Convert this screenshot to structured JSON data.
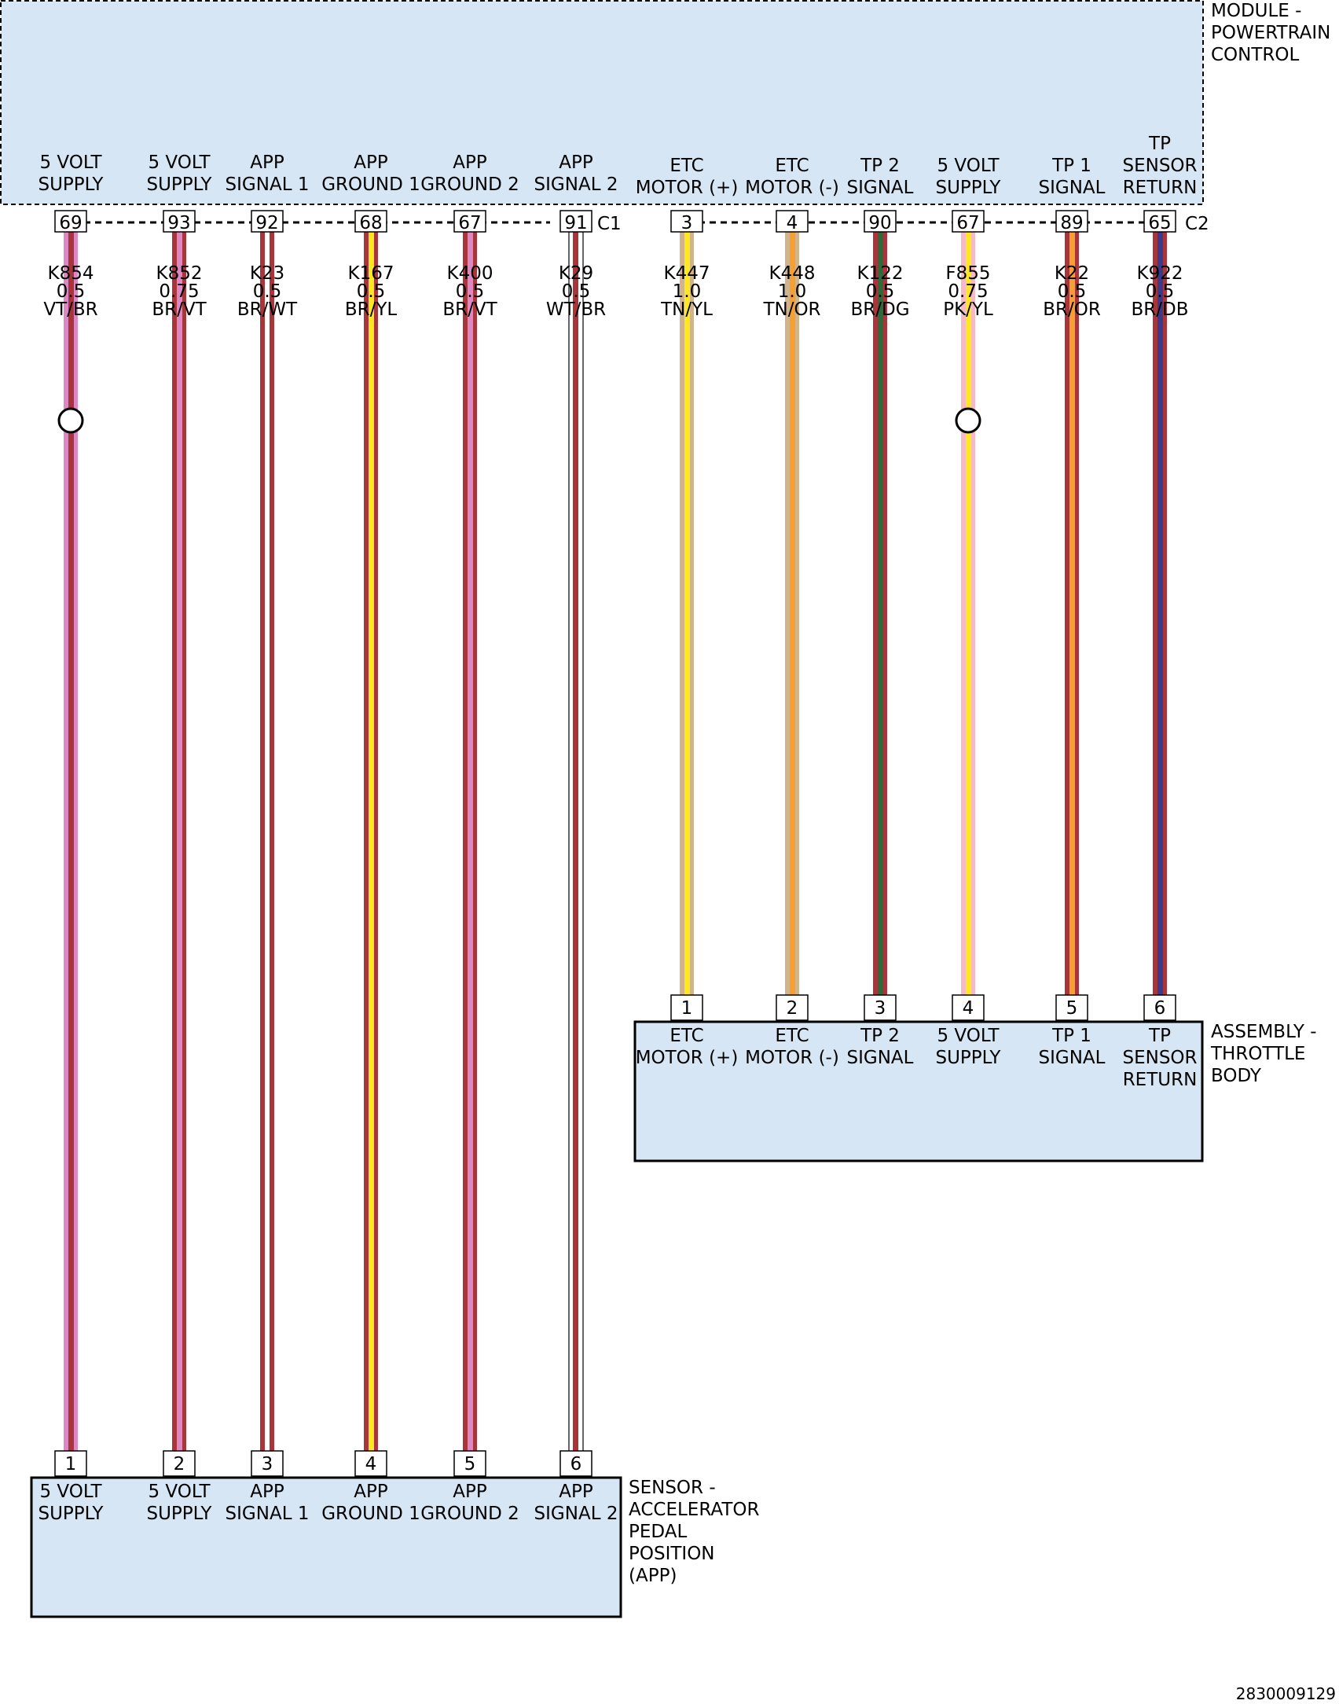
{
  "colors": {
    "module_fill": "#d6e6f5",
    "VT": "#dd88c4",
    "BR": "#a8353a",
    "WT": "#ffffff",
    "YL": "#ffe81f",
    "TN": "#d2b48c",
    "OR": "#f5a031",
    "DG": "#2e6b3a",
    "PK": "#f6b9c6",
    "DB": "#3b3a8a"
  },
  "modules": {
    "pcm": {
      "label": [
        "MODULE -",
        "POWERTRAIN",
        "CONTROL"
      ],
      "connector_c1": "C1",
      "connector_c2": "C2"
    },
    "throttle": {
      "label": [
        "ASSEMBLY -",
        "THROTTLE",
        "BODY"
      ]
    },
    "app": {
      "label": [
        "SENSOR -",
        "ACCELERATOR",
        "PEDAL",
        "POSITION",
        "(APP)"
      ]
    }
  },
  "circuits": [
    {
      "pin_top": "69",
      "top_label": [
        "5 VOLT",
        "SUPPLY"
      ],
      "circuit": "K854",
      "gauge": "0.5",
      "color": "VT/BR",
      "pin_bottom": "1",
      "bottom_label": [
        "5 VOLT",
        "SUPPLY"
      ],
      "splice": true
    },
    {
      "pin_top": "93",
      "top_label": [
        "5 VOLT",
        "SUPPLY"
      ],
      "circuit": "K852",
      "gauge": "0.75",
      "color": "BR/VT",
      "pin_bottom": "2",
      "bottom_label": [
        "5 VOLT",
        "SUPPLY"
      ],
      "splice": false
    },
    {
      "pin_top": "92",
      "top_label": [
        "APP",
        "SIGNAL 1"
      ],
      "circuit": "K23",
      "gauge": "0.5",
      "color": "BR/WT",
      "pin_bottom": "3",
      "bottom_label": [
        "APP",
        "SIGNAL 1"
      ],
      "splice": false
    },
    {
      "pin_top": "68",
      "top_label": [
        "APP",
        "GROUND 1"
      ],
      "circuit": "K167",
      "gauge": "0.5",
      "color": "BR/YL",
      "pin_bottom": "4",
      "bottom_label": [
        "APP",
        "GROUND 1"
      ],
      "splice": false
    },
    {
      "pin_top": "67",
      "top_label": [
        "APP",
        "GROUND 2"
      ],
      "circuit": "K400",
      "gauge": "0.5",
      "color": "BR/VT",
      "pin_bottom": "5",
      "bottom_label": [
        "APP",
        "GROUND 2"
      ],
      "splice": false
    },
    {
      "pin_top": "91",
      "top_label": [
        "APP",
        "SIGNAL 2"
      ],
      "circuit": "K29",
      "gauge": "0.5",
      "color": "WT/BR",
      "pin_bottom": "6",
      "bottom_label": [
        "APP",
        "SIGNAL 2"
      ],
      "splice": false
    },
    {
      "pin_top": "3",
      "top_label": [
        "ETC",
        "MOTOR (+)"
      ],
      "circuit": "K447",
      "gauge": "1.0",
      "color": "TN/YL",
      "pin_bottom": "1",
      "bottom_label": [
        "ETC",
        "MOTOR (+)"
      ],
      "splice": false
    },
    {
      "pin_top": "4",
      "top_label": [
        "ETC",
        "MOTOR (-)"
      ],
      "circuit": "K448",
      "gauge": "1.0",
      "color": "TN/OR",
      "pin_bottom": "2",
      "bottom_label": [
        "ETC",
        "MOTOR (-)"
      ],
      "splice": false
    },
    {
      "pin_top": "90",
      "top_label": [
        "TP 2",
        "SIGNAL"
      ],
      "circuit": "K122",
      "gauge": "0.5",
      "color": "BR/DG",
      "pin_bottom": "3",
      "bottom_label": [
        "TP 2",
        "SIGNAL"
      ],
      "splice": false
    },
    {
      "pin_top": "67",
      "top_label": [
        "5 VOLT",
        "SUPPLY"
      ],
      "circuit": "F855",
      "gauge": "0.75",
      "color": "PK/YL",
      "pin_bottom": "4",
      "bottom_label": [
        "5 VOLT",
        "SUPPLY"
      ],
      "splice": true
    },
    {
      "pin_top": "89",
      "top_label": [
        "TP 1",
        "SIGNAL"
      ],
      "circuit": "K22",
      "gauge": "0.5",
      "color": "BR/OR",
      "pin_bottom": "5",
      "bottom_label": [
        "TP 1",
        "SIGNAL"
      ],
      "splice": false
    },
    {
      "pin_top": "65",
      "top_label": [
        "TP",
        "SENSOR",
        "RETURN"
      ],
      "circuit": "K922",
      "gauge": "0.5",
      "color": "BR/DB",
      "pin_bottom": "6",
      "bottom_label": [
        "TP",
        "SENSOR",
        "RETURN"
      ],
      "splice": false
    }
  ],
  "figure_id": "2830009129"
}
